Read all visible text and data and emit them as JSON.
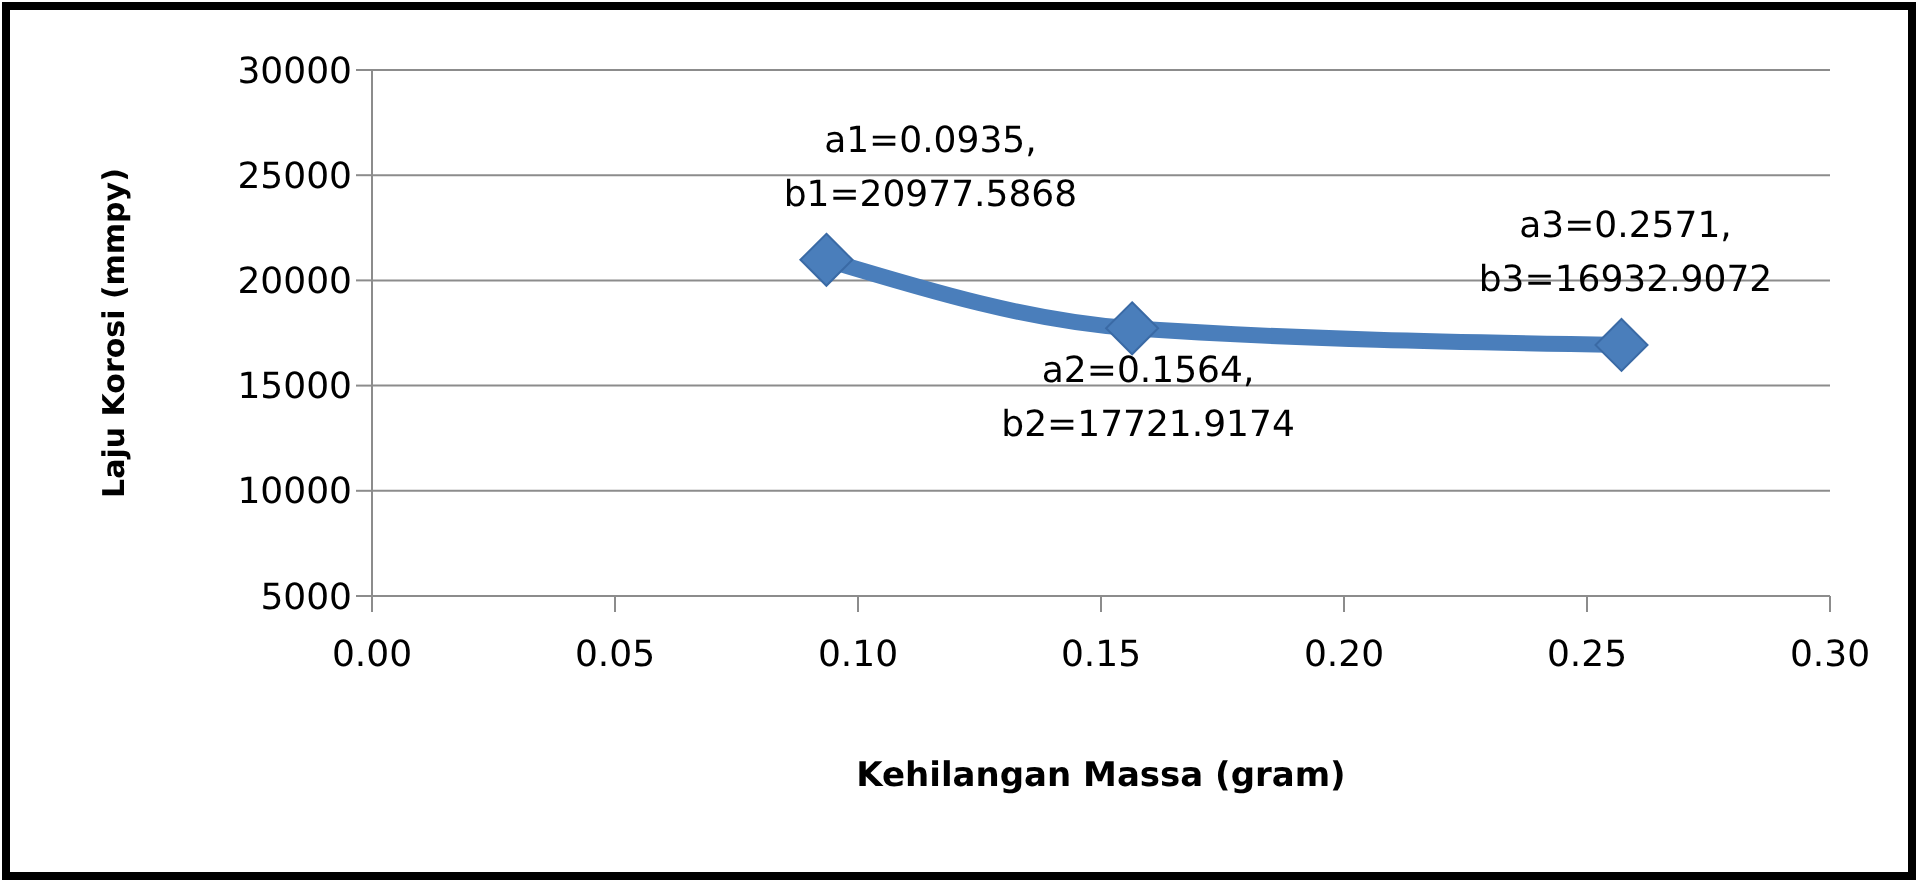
{
  "chart_data": {
    "type": "line",
    "xlabel": "Kehilangan Massa (gram)",
    "ylabel": "Laju Korosi (mmpy)",
    "x": [
      0.0935,
      0.1564,
      0.2571
    ],
    "series": [
      {
        "color": "#4a7ebb",
        "values": [
          20977.5868,
          17721.9174,
          16932.9072
        ]
      }
    ],
    "xlim": [
      0,
      0.3
    ],
    "xticks": [
      {
        "value": 0,
        "label": "0.00"
      },
      {
        "value": 0.05,
        "label": "0.05"
      },
      {
        "value": 0.1,
        "label": "0.10"
      },
      {
        "value": 0.15,
        "label": "0.15"
      },
      {
        "value": 0.2,
        "label": "0.20"
      },
      {
        "value": 0.25,
        "label": "0.25"
      },
      {
        "value": 0.3,
        "label": "0.30"
      }
    ],
    "ylim": [
      5000,
      30000
    ],
    "yticks": [
      5000,
      10000,
      15000,
      20000,
      25000,
      30000
    ],
    "grid": "y",
    "marker": "diamond",
    "line_style": "solid",
    "annotations": [
      {
        "text": "a1=0.0935,\nb1=20977.5868",
        "x": 0.0935,
        "y": 20977.5868
      },
      {
        "text": "a2=0.1564,\nb2=17721.9174",
        "x": 0.1564,
        "y": 17721.9174
      },
      {
        "text": "a3=0.2571,\nb3=16932.9072",
        "x": 0.2571,
        "y": 16932.9072
      }
    ]
  }
}
